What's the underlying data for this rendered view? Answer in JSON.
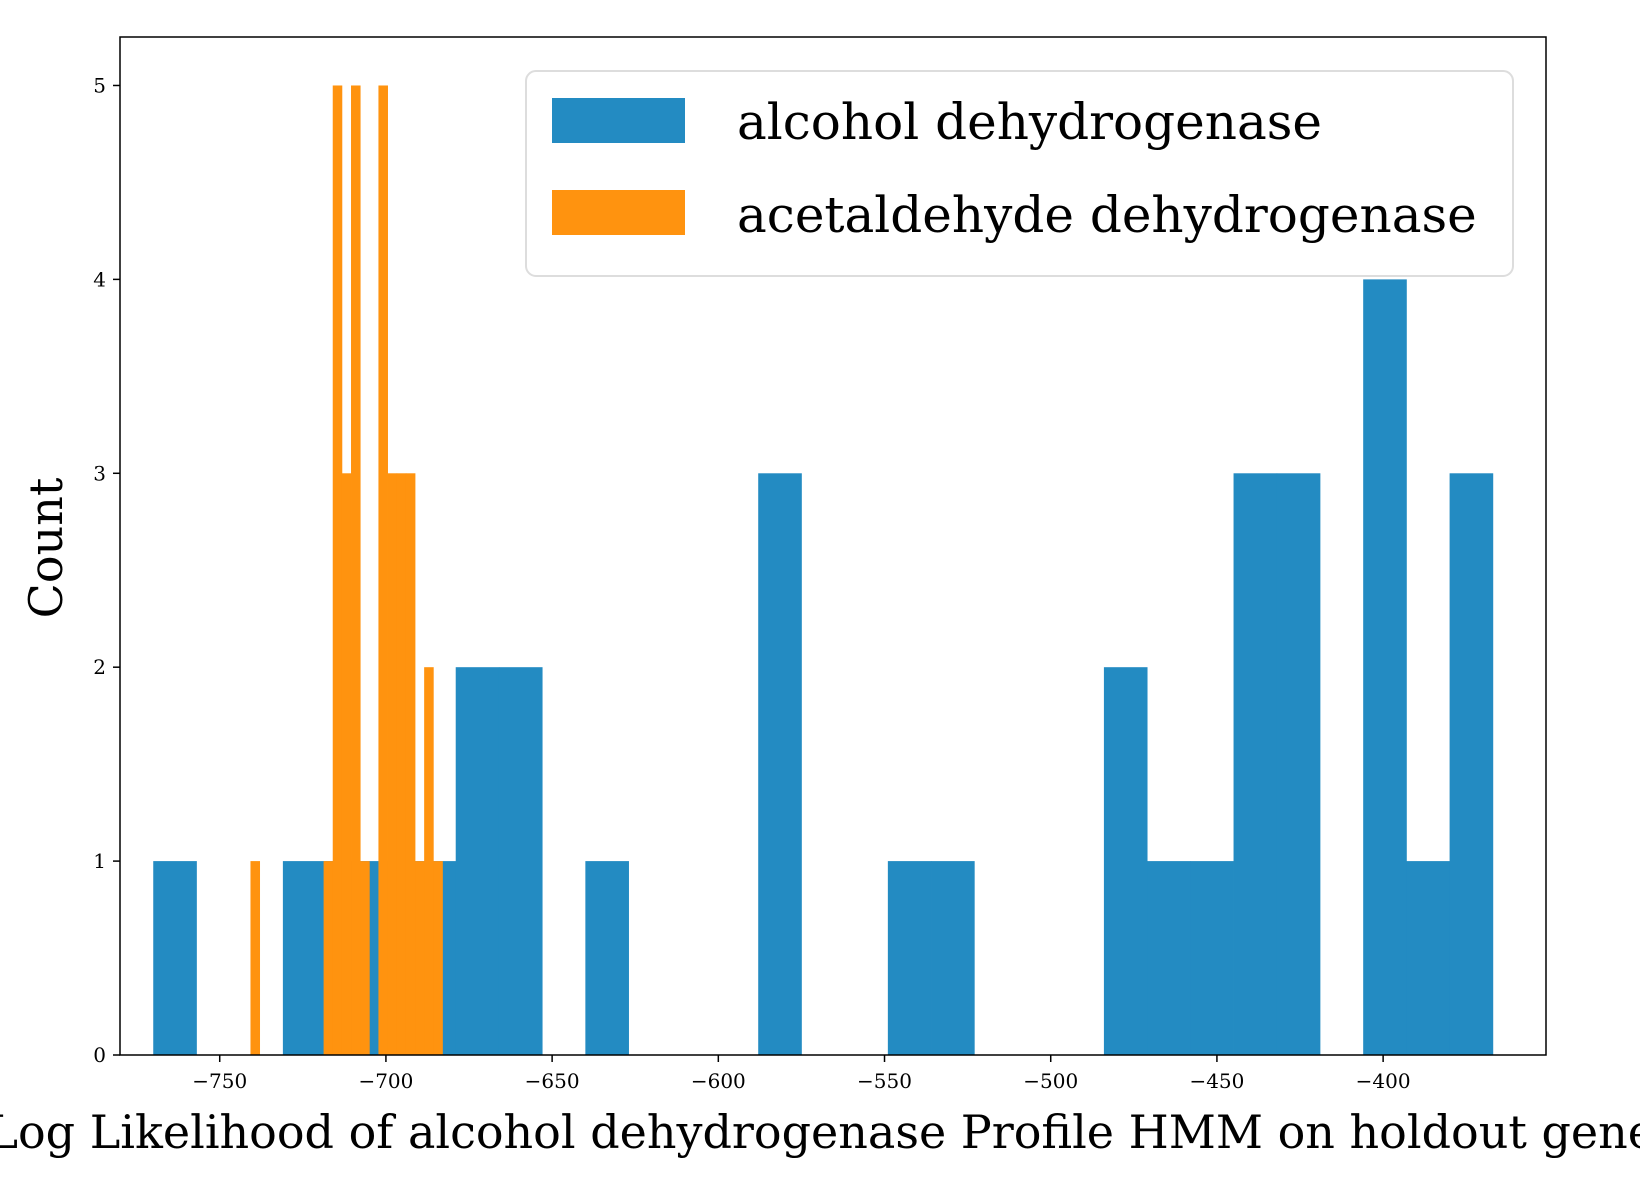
{
  "chart_data": {
    "type": "bar",
    "title": "",
    "xlabel": "Log Likelihood of alcohol dehydrogenase Profile HMM on holdout genes",
    "ylabel": "Count",
    "xlim": [
      -780,
      -351
    ],
    "ylim": [
      0,
      5.25
    ],
    "x_ticks": [
      -750,
      -700,
      -650,
      -600,
      -550,
      -500,
      -450,
      -400
    ],
    "x_tick_labels": [
      "−750",
      "−700",
      "−650",
      "−600",
      "−550",
      "−500",
      "−450",
      "−400"
    ],
    "y_ticks": [
      0,
      1,
      2,
      3,
      4,
      5
    ],
    "y_tick_labels": [
      "0",
      "1",
      "2",
      "3",
      "4",
      "5"
    ],
    "grid": false,
    "legend_position": "top-right",
    "series": [
      {
        "name": "alcohol dehydrogenase",
        "color": "#238bc2",
        "bin_width": 13.0,
        "bins": [
          {
            "x0": -770.0,
            "count": 1
          },
          {
            "x0": -731.0,
            "count": 1
          },
          {
            "x0": -718.0,
            "count": 1
          },
          {
            "x0": -705.0,
            "count": 1
          },
          {
            "x0": -692.0,
            "count": 1
          },
          {
            "x0": -679.0,
            "count": 2
          },
          {
            "x0": -666.0,
            "count": 2
          },
          {
            "x0": -640.0,
            "count": 1
          },
          {
            "x0": -588.0,
            "count": 3
          },
          {
            "x0": -549.0,
            "count": 1
          },
          {
            "x0": -536.0,
            "count": 1
          },
          {
            "x0": -484.0,
            "count": 2
          },
          {
            "x0": -471.0,
            "count": 1
          },
          {
            "x0": -458.0,
            "count": 1
          },
          {
            "x0": -445.0,
            "count": 3
          },
          {
            "x0": -432.0,
            "count": 3
          },
          {
            "x0": -406.0,
            "count": 4
          },
          {
            "x0": -393.0,
            "count": 1
          },
          {
            "x0": -380.0,
            "count": 3
          }
        ]
      },
      {
        "name": "acetaldehyde dehydrogenase",
        "color": "#ff930f",
        "bin_width": 2.75,
        "bins": [
          {
            "x0": -740.75,
            "count": 1
          },
          {
            "x0": -718.75,
            "count": 1
          },
          {
            "x0": -716.0,
            "count": 5
          },
          {
            "x0": -713.25,
            "count": 3
          },
          {
            "x0": -710.5,
            "count": 5
          },
          {
            "x0": -707.75,
            "count": 1
          },
          {
            "x0": -702.25,
            "count": 5
          },
          {
            "x0": -699.5,
            "count": 3
          },
          {
            "x0": -696.75,
            "count": 3
          },
          {
            "x0": -694.0,
            "count": 3
          },
          {
            "x0": -691.25,
            "count": 1
          },
          {
            "x0": -688.5,
            "count": 2
          },
          {
            "x0": -685.75,
            "count": 1
          }
        ]
      }
    ]
  }
}
